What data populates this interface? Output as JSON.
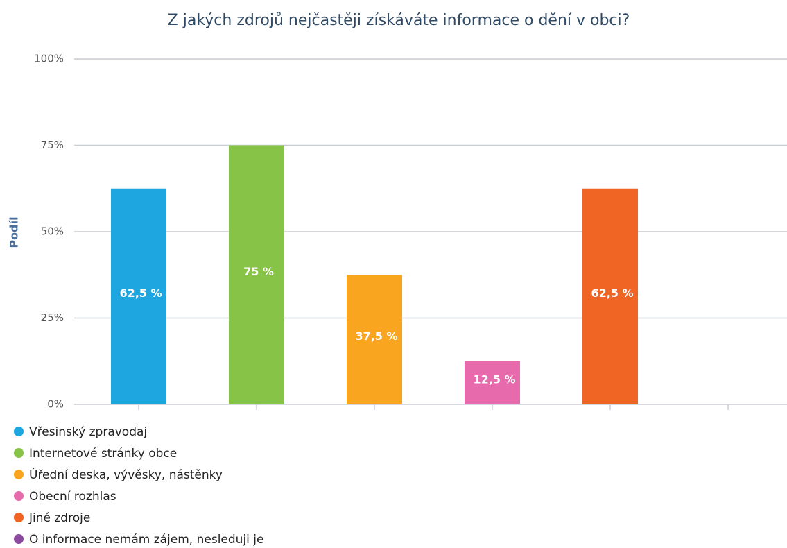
{
  "chart_data": {
    "type": "bar",
    "title": "Z jakých zdrojů nejčastěji získáváte informace o dění v obci?",
    "ylabel": "Podíl",
    "categories": [
      "Vřesinský zpravodaj",
      "Internetové stránky obce",
      "Úřední deska, vývěsky, nástěnky",
      "Obecní rozhlas",
      "Jiné zdroje",
      "O informace nemám zájem, nesleduji je"
    ],
    "values": [
      62.5,
      75,
      37.5,
      12.5,
      62.5,
      0
    ],
    "value_labels": [
      "62,5 %",
      "75 %",
      "37,5 %",
      "12,5 %",
      "62,5 %",
      null
    ],
    "colors": [
      "#1ea6e0",
      "#86c346",
      "#f9a51f",
      "#e66aac",
      "#f06424",
      "#8c4a9e"
    ],
    "ylim": [
      0,
      100
    ],
    "yticks": [
      {
        "value": 0,
        "label": "0%"
      },
      {
        "value": 25,
        "label": "25%"
      },
      {
        "value": 50,
        "label": "50%"
      },
      {
        "value": 75,
        "label": "75%"
      },
      {
        "value": 100,
        "label": "100%"
      }
    ],
    "grid": true
  }
}
